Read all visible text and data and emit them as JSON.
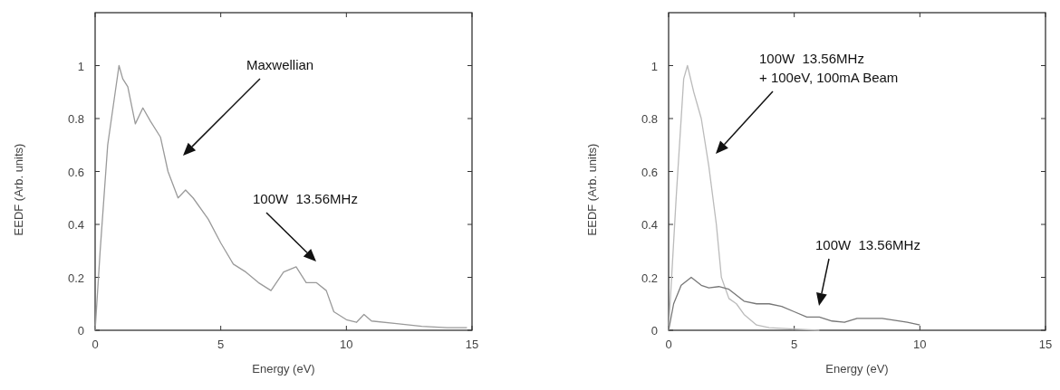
{
  "chart_data": [
    {
      "type": "line",
      "xlabel": "Energy (eV)",
      "ylabel": "EEDF (Arb. units)",
      "xlim": [
        0,
        15
      ],
      "ylim": [
        0,
        1.2
      ],
      "xticks": [
        0,
        5,
        10,
        15
      ],
      "yticks": [
        0,
        0.2,
        0.4,
        0.6,
        0.8,
        1
      ],
      "grid": false,
      "series": [
        {
          "color": "#9a9a9a",
          "x": [
            0,
            0.2,
            0.5,
            0.8,
            0.95,
            1.1,
            1.3,
            1.6,
            1.9,
            2.2,
            2.6,
            2.9,
            3.3,
            3.6,
            3.9,
            4.5,
            5,
            5.5,
            6,
            6.5,
            7,
            7.5,
            8,
            8.4,
            8.8,
            9.2,
            9.5,
            10,
            10.4,
            10.7,
            11,
            12,
            13,
            14,
            14.8
          ],
          "values": [
            0,
            0.3,
            0.7,
            0.9,
            1,
            0.95,
            0.92,
            0.78,
            0.84,
            0.79,
            0.73,
            0.6,
            0.5,
            0.53,
            0.5,
            0.42,
            0.33,
            0.25,
            0.22,
            0.18,
            0.15,
            0.22,
            0.24,
            0.18,
            0.18,
            0.15,
            0.07,
            0.04,
            0.03,
            0.06,
            0.035,
            0.025,
            0.015,
            0.01,
            0.01
          ]
        }
      ],
      "annotations": [
        "Maxwellian",
        "100W  13.56MHz"
      ]
    },
    {
      "type": "line",
      "xlabel": "Energy (eV)",
      "ylabel": "EEDF (Arb. units)",
      "xlim": [
        0,
        15
      ],
      "ylim": [
        0,
        1.2
      ],
      "xticks": [
        0,
        5,
        10,
        15
      ],
      "yticks": [
        0,
        0.2,
        0.4,
        0.6,
        0.8,
        1
      ],
      "grid": false,
      "series": [
        {
          "color": "#bbbbbb",
          "x": [
            0,
            0.3,
            0.6,
            0.75,
            1,
            1.3,
            1.6,
            1.9,
            2.1,
            2.4,
            2.7,
            3,
            3.5,
            4,
            5,
            6
          ],
          "values": [
            0,
            0.5,
            0.95,
            1,
            0.9,
            0.8,
            0.62,
            0.4,
            0.2,
            0.12,
            0.1,
            0.06,
            0.02,
            0.01,
            0.005,
            0
          ]
        },
        {
          "color": "#777777",
          "x": [
            0,
            0.2,
            0.5,
            0.9,
            1.3,
            1.6,
            2,
            2.4,
            3,
            3.5,
            4,
            4.5,
            5,
            5.5,
            6,
            6.5,
            7,
            7.5,
            8.5,
            9.5,
            10
          ],
          "values": [
            0,
            0.1,
            0.17,
            0.2,
            0.17,
            0.16,
            0.165,
            0.155,
            0.11,
            0.1,
            0.1,
            0.09,
            0.07,
            0.05,
            0.05,
            0.035,
            0.03,
            0.045,
            0.045,
            0.03,
            0.02
          ]
        }
      ],
      "annotations": [
        "100W  13.56MHz\n+ 100eV, 100mA Beam",
        "100W  13.56MHz"
      ]
    }
  ]
}
